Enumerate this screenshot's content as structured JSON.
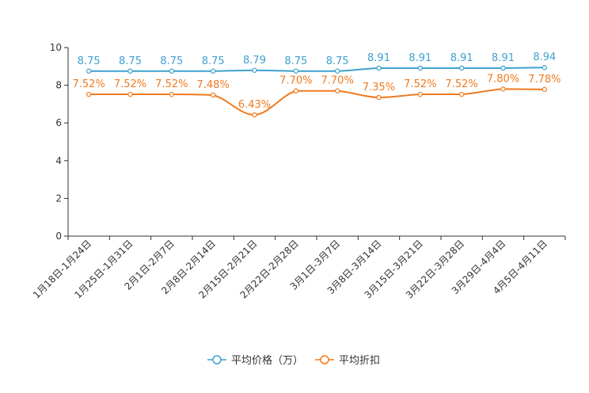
{
  "chart_data": {
    "type": "line",
    "title": "",
    "xlabel": "",
    "ylabel": "",
    "ylim": [
      0,
      10
    ],
    "yticks": [
      0,
      2,
      4,
      6,
      8,
      10
    ],
    "grid": false,
    "legend_position": "bottom-center",
    "categories": [
      "1月18日-1月24日",
      "1月25日-1月31日",
      "2月1日-2月7日",
      "2月8日-2月14日",
      "2月15日-2月21日",
      "2月22日-2月28日",
      "3月1日-3月7日",
      "3月8日-3月14日",
      "3月15日-3月21日",
      "3月22日-3月28日",
      "3月29日-4月4日",
      "4月5日-4月11日"
    ],
    "series": [
      {
        "name": "平均价格（万）",
        "color": "#3fa0d0",
        "values": [
          8.75,
          8.75,
          8.75,
          8.75,
          8.79,
          8.75,
          8.75,
          8.91,
          8.91,
          8.91,
          8.91,
          8.94
        ],
        "labels": [
          "8.75",
          "8.75",
          "8.75",
          "8.75",
          "8.79",
          "8.75",
          "8.75",
          "8.91",
          "8.91",
          "8.91",
          "8.91",
          "8.94"
        ]
      },
      {
        "name": "平均折扣",
        "color": "#f07a1e",
        "values": [
          7.52,
          7.52,
          7.52,
          7.48,
          6.43,
          7.7,
          7.7,
          7.35,
          7.52,
          7.52,
          7.8,
          7.78
        ],
        "labels": [
          "7.52%",
          "7.52%",
          "7.52%",
          "7.48%",
          "6.43%",
          "7.70%",
          "7.70%",
          "7.35%",
          "7.52%",
          "7.52%",
          "7.80%",
          "7.78%"
        ]
      }
    ]
  }
}
